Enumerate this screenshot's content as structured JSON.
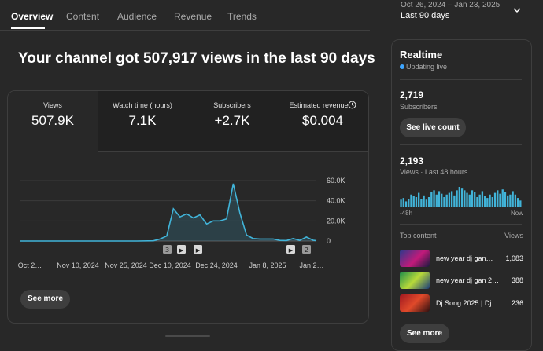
{
  "tabs": [
    {
      "label": "Overview"
    },
    {
      "label": "Content"
    },
    {
      "label": "Audience"
    },
    {
      "label": "Revenue"
    },
    {
      "label": "Trends"
    }
  ],
  "date_range": {
    "range_text": "Oct 26, 2024 – Jan 23, 2025",
    "label": "Last 90 days"
  },
  "headline": "Your channel got 507,917 views in the last 90 days",
  "metrics": [
    {
      "label": "Views",
      "value": "507.9K"
    },
    {
      "label": "Watch time (hours)",
      "value": "7.1K"
    },
    {
      "label": "Subscribers",
      "value": "+2.7K"
    },
    {
      "label": "Estimated revenue",
      "value": "$0.004"
    }
  ],
  "chart_data": {
    "type": "area",
    "title": "",
    "xlabel": "",
    "ylabel": "",
    "ylim": [
      0,
      60000
    ],
    "y_ticks": [
      0,
      20000,
      40000,
      60000
    ],
    "y_tick_labels": [
      "0",
      "20.0K",
      "40.0K",
      "60.0K"
    ],
    "x_tick_labels": [
      "Oct 2…",
      "Nov 10, 2024",
      "Nov 25, 2024",
      "Dec 10, 2024",
      "Dec 24, 2024",
      "Jan 8, 2025",
      "Jan 2…"
    ],
    "x": [
      0,
      10,
      20,
      30,
      35,
      40,
      42,
      44,
      46,
      48,
      50,
      52,
      54,
      56,
      58,
      60,
      62,
      64,
      66,
      68,
      70,
      72,
      74,
      76,
      78,
      80,
      82,
      84,
      86,
      88,
      89
    ],
    "values": [
      0,
      0,
      0,
      0,
      0,
      200,
      2000,
      5000,
      32000,
      24000,
      27000,
      23000,
      26000,
      17000,
      20000,
      20000,
      22000,
      57000,
      28000,
      6000,
      2500,
      2000,
      2000,
      2000,
      600,
      500,
      2500,
      600,
      4000,
      800,
      300
    ],
    "x_range": [
      0,
      89
    ],
    "event_markers": [
      {
        "label": "3",
        "type": "count"
      },
      {
        "label": "▶",
        "type": "video"
      },
      {
        "label": "▶",
        "type": "video"
      },
      {
        "label": "▶",
        "type": "video"
      },
      {
        "label": "2",
        "type": "count"
      }
    ],
    "grid": true,
    "color": "#41b4d9"
  },
  "main_see_more": "See more",
  "realtime": {
    "title": "Realtime",
    "status": "Updating live",
    "subscribers_count": "2,719",
    "subscribers_label": "Subscribers",
    "see_live_count": "See live count",
    "views_count": "2,193",
    "views_label": "Views · Last 48 hours",
    "axis_start": "-48h",
    "axis_end": "Now",
    "hourly_values": [
      18,
      22,
      14,
      20,
      30,
      26,
      24,
      34,
      20,
      28,
      18,
      24,
      36,
      40,
      30,
      38,
      32,
      24,
      30,
      34,
      38,
      28,
      40,
      48,
      44,
      40,
      34,
      30,
      40,
      36,
      24,
      30,
      38,
      26,
      22,
      30,
      24,
      34,
      40,
      32,
      42,
      36,
      28,
      30,
      38,
      30,
      22,
      16
    ],
    "top_content_label": "Top content",
    "views_col_label": "Views",
    "top_content": [
      {
        "title": "new year dj gan…",
        "views": "1,083"
      },
      {
        "title": "new year dj gan 2…",
        "views": "388"
      },
      {
        "title": "Dj Song 2025 | Dj…",
        "views": "236"
      }
    ],
    "see_more": "See more"
  },
  "colors": {
    "background": "#282828",
    "accent": "#3ea6ff",
    "chart_line": "#41b4d9",
    "bars": "#41b4d9"
  }
}
